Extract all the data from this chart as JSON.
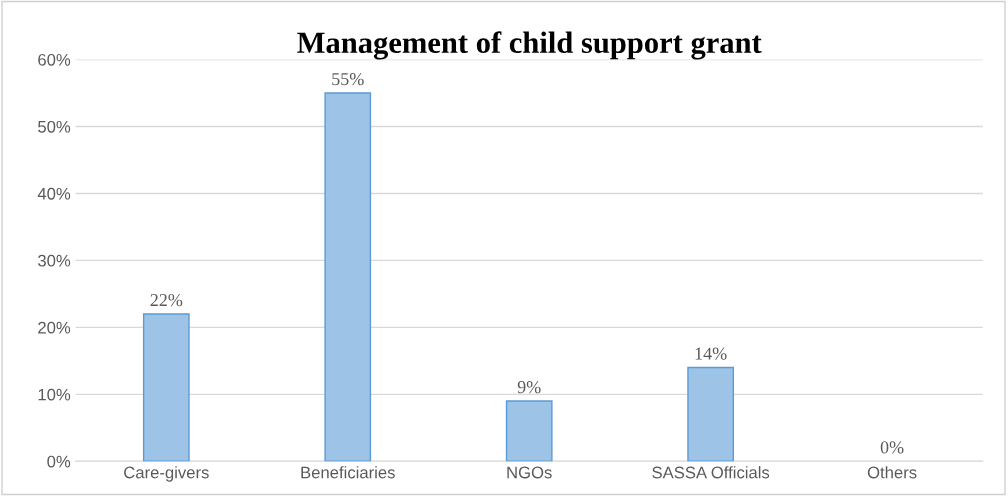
{
  "chart_data": {
    "type": "bar",
    "title": "Management of child support grant",
    "categories": [
      "Care-givers",
      "Beneficiaries",
      "NGOs",
      "SASSA Officials",
      "Others"
    ],
    "values": [
      22,
      55,
      9,
      14,
      0
    ],
    "value_labels": [
      "22%",
      "55%",
      "9%",
      "14%",
      "0%"
    ],
    "color": "#9dc3e6",
    "ylim": [
      0,
      60
    ],
    "yticks": [
      {
        "value": 0,
        "label": "0%"
      },
      {
        "value": 10,
        "label": "10%"
      },
      {
        "value": 20,
        "label": "20%"
      },
      {
        "value": 30,
        "label": "30%"
      },
      {
        "value": 40,
        "label": "40%"
      },
      {
        "value": 50,
        "label": "50%"
      },
      {
        "value": 60,
        "label": "60%"
      }
    ],
    "grid": "y",
    "legend": false
  }
}
